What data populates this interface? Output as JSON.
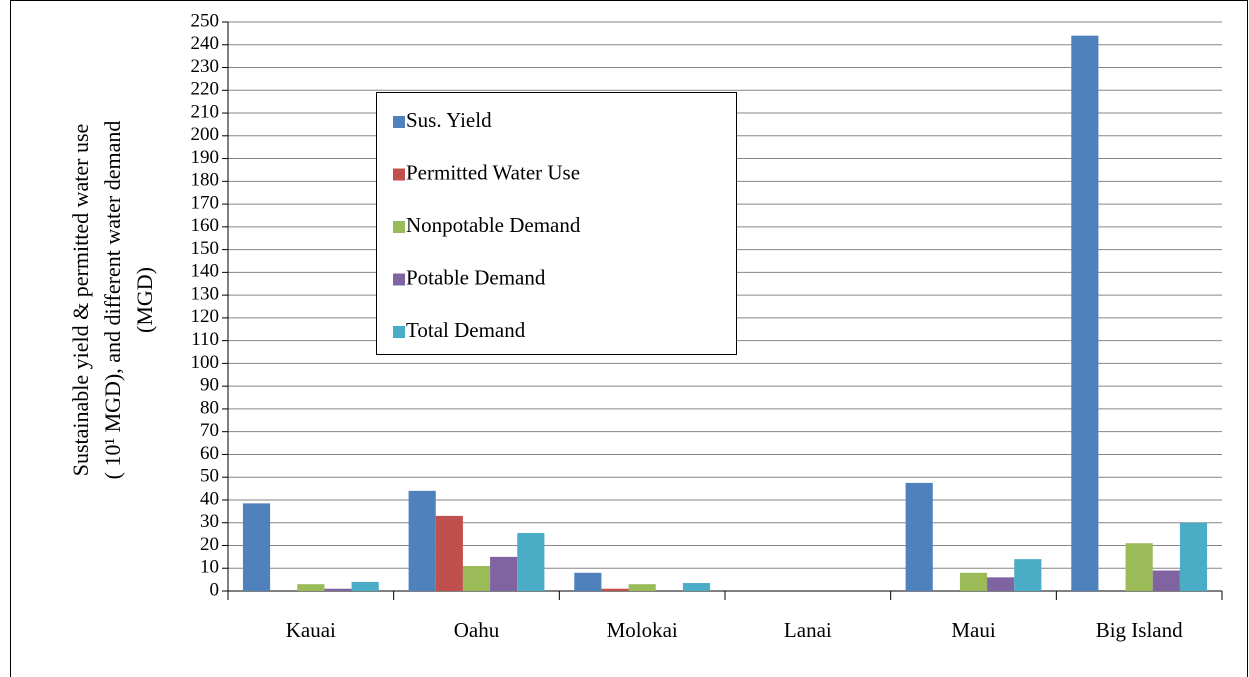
{
  "chart_data": {
    "type": "bar",
    "ylabel": [
      "Sustainable yield & permitted water use",
      "( 10¹ MGD), and different water demand",
      "(MGD)"
    ],
    "categories": [
      "Kauai",
      "Oahu",
      "Molokai",
      "Lanai",
      "Maui",
      "Big Island"
    ],
    "series": [
      {
        "name": "Sus. Yield",
        "color": "#4f81bd",
        "values": [
          38.5,
          44,
          8,
          0,
          47.5,
          244
        ]
      },
      {
        "name": "Permitted Water Use",
        "color": "#c0504d",
        "values": [
          0,
          33,
          1,
          0,
          0,
          0
        ]
      },
      {
        "name": "Nonpotable Demand",
        "color": "#9bbb59",
        "values": [
          3,
          11,
          3,
          0,
          8,
          21
        ]
      },
      {
        "name": "Potable Demand",
        "color": "#8064a2",
        "values": [
          1,
          15,
          0,
          0,
          6,
          9
        ]
      },
      {
        "name": "Total Demand",
        "color": "#4bacc6",
        "values": [
          4,
          25.5,
          3.5,
          0,
          14,
          30
        ]
      }
    ],
    "ylim": [
      0,
      250
    ],
    "yticks": [
      0,
      10,
      20,
      30,
      40,
      50,
      60,
      70,
      80,
      90,
      100,
      110,
      120,
      130,
      140,
      150,
      160,
      170,
      180,
      190,
      200,
      210,
      220,
      230,
      240,
      250
    ],
    "grid": true
  }
}
